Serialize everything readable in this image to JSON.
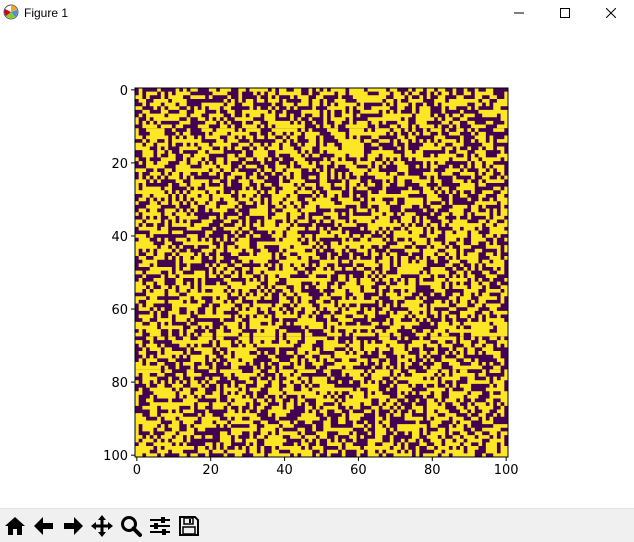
{
  "window": {
    "title": "Figure 1",
    "app_icon": "matplotlib-icon",
    "controls": [
      {
        "name": "minimize",
        "icon": "minimize-icon"
      },
      {
        "name": "maximize",
        "icon": "maximize-icon"
      },
      {
        "name": "close",
        "icon": "close-icon"
      }
    ]
  },
  "toolbar": {
    "buttons": [
      {
        "name": "home",
        "icon": "home-icon"
      },
      {
        "name": "back",
        "icon": "back-arrow-icon"
      },
      {
        "name": "forward",
        "icon": "forward-arrow-icon"
      },
      {
        "name": "pan",
        "icon": "move-icon"
      },
      {
        "name": "zoom",
        "icon": "zoom-icon"
      },
      {
        "name": "configure-subplots",
        "icon": "sliders-icon"
      },
      {
        "name": "save",
        "icon": "save-icon"
      }
    ]
  },
  "chart_data": {
    "type": "heatmap",
    "rows": 101,
    "cols": 101,
    "values": "binary random grid (0/1); individual cell values not recoverable from screenshot",
    "colormap": {
      "low": "#440154",
      "high": "#fde725"
    },
    "xticks": [
      "0",
      "20",
      "40",
      "60",
      "80",
      "100"
    ],
    "yticks": [
      "0",
      "20",
      "40",
      "60",
      "80",
      "100"
    ],
    "xlim": [
      -0.5,
      100.5
    ],
    "ylim": [
      100.5,
      -0.5
    ],
    "title": "",
    "xlabel": "",
    "ylabel": "",
    "grid": false
  }
}
